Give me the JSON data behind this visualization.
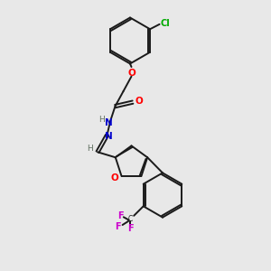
{
  "bg_color": "#e8e8e8",
  "bond_color": "#1a1a1a",
  "atom_colors": {
    "O": "#ff0000",
    "N": "#0000cc",
    "Cl": "#00aa00",
    "F": "#cc00cc",
    "H": "#607060",
    "C": "#1a1a1a"
  },
  "lw": 1.4,
  "dbo": 0.055
}
